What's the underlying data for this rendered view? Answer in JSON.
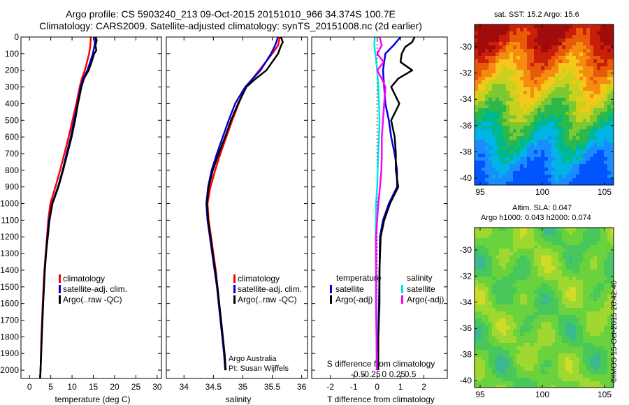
{
  "header": {
    "title_line1": "Argo profile: CS 5903240_213 09-Oct-2015 20151010_966 34.374S 100.7E",
    "title_line2": "Climatology: CARS2009. Satellite-adjusted climatology: synTS_20151008.nc (2d earlier)"
  },
  "maps": {
    "sst_title": "sat. SST: 15.2 Argo: 15.6",
    "sla_title_line1": "Altim. SLA: 0.047",
    "sla_title_line2": "Argo h1000: 0.043 h2000: 0.074",
    "lat_ticks": [
      "-30",
      "-32",
      "-34",
      "-36",
      "-38",
      "-40"
    ],
    "lon_ticks": [
      "95",
      "100",
      "105"
    ]
  },
  "footer": {
    "stamp": "©IMOS 15-Oct-2015 20:42:40",
    "credit_line1": "Argo Australia",
    "credit_line2": "PI: Susan Wijffels"
  },
  "colors": {
    "climatology": "#ff0000",
    "satellite": "#0000dd",
    "argo": "#000000",
    "sat_salinity": "#00e5e5",
    "argo_salinity": "#ff00ff"
  },
  "chart_data": [
    {
      "type": "line",
      "id": "temperature",
      "xlabel": "temperature (deg C)",
      "ylabel": "",
      "xlim": [
        -2,
        31
      ],
      "ylim": [
        2050,
        0
      ],
      "xticks": [
        0,
        5,
        10,
        15,
        20,
        25,
        30
      ],
      "yticks": [
        0,
        100,
        200,
        300,
        400,
        500,
        600,
        700,
        800,
        900,
        1000,
        1100,
        1200,
        1300,
        1400,
        1500,
        1600,
        1700,
        1800,
        1900,
        2000
      ],
      "legend": [
        "climatology",
        "satellite-adj. clim.",
        "Argo(..raw -QC)"
      ],
      "series": [
        {
          "name": "climatology",
          "y": [
            0,
            50,
            100,
            200,
            250,
            300,
            400,
            500,
            600,
            700,
            800,
            900,
            1000,
            1100,
            1200,
            1300,
            1400,
            1600,
            1800,
            2000,
            2050
          ],
          "x": [
            14.4,
            14.3,
            14.0,
            13.0,
            12.3,
            11.8,
            11.0,
            10.1,
            9.2,
            8.2,
            7.2,
            6.1,
            4.9,
            4.4,
            4.1,
            3.8,
            3.5,
            3.1,
            2.8,
            2.6,
            2.5
          ]
        },
        {
          "name": "satellite-adj. clim.",
          "y": [
            0,
            50,
            100,
            200,
            250,
            300,
            400,
            500,
            600,
            700,
            800,
            900,
            1000,
            1100,
            1200,
            1300,
            1400,
            1600,
            1800,
            2000,
            2050
          ],
          "x": [
            15.4,
            15.3,
            14.9,
            13.6,
            12.6,
            12.0,
            11.3,
            10.5,
            9.7,
            8.7,
            7.8,
            6.7,
            5.3,
            4.6,
            4.2,
            3.9,
            3.6,
            3.2,
            2.9,
            2.6,
            2.5
          ]
        },
        {
          "name": "Argo(..raw -QC)",
          "y": [
            0,
            20,
            50,
            80,
            100,
            150,
            200,
            250,
            300,
            400,
            500,
            600,
            700,
            800,
            900,
            1000,
            1100,
            1200,
            1300,
            1400,
            1600,
            1800,
            2000,
            2050
          ],
          "x": [
            15.6,
            15.8,
            15.5,
            15.7,
            15.2,
            14.6,
            13.9,
            12.8,
            12.2,
            11.4,
            10.7,
            9.9,
            8.9,
            7.9,
            6.8,
            5.4,
            4.7,
            4.3,
            3.9,
            3.6,
            3.2,
            2.9,
            2.6,
            2.5
          ]
        }
      ]
    },
    {
      "type": "line",
      "id": "salinity",
      "xlabel": "salinity",
      "ylabel": "",
      "xlim": [
        33.7,
        36.1
      ],
      "ylim": [
        2050,
        0
      ],
      "xticks": [
        34,
        34.5,
        35,
        35.5,
        36
      ],
      "legend": [
        "climatology",
        "satellite-adj. clim.",
        "Argo(..raw -QC)"
      ],
      "series": [
        {
          "name": "climatology",
          "y": [
            0,
            50,
            100,
            200,
            300,
            400,
            500,
            600,
            700,
            800,
            900,
            1000,
            1100,
            1200,
            1300,
            1400,
            1500,
            1600,
            1700,
            1800,
            1900,
            2000
          ],
          "x": [
            35.63,
            35.6,
            35.5,
            35.28,
            35.05,
            34.93,
            34.82,
            34.72,
            34.62,
            34.53,
            34.45,
            34.4,
            34.42,
            34.46,
            34.5,
            34.54,
            34.57,
            34.6,
            34.63,
            34.66,
            34.69,
            34.71
          ]
        },
        {
          "name": "satellite-adj. clim.",
          "y": [
            0,
            50,
            100,
            200,
            300,
            400,
            500,
            600,
            700,
            800,
            900,
            1000,
            1100,
            1200,
            1300,
            1400,
            1500,
            1600,
            1700,
            1800,
            1900,
            2000
          ],
          "x": [
            35.6,
            35.55,
            35.48,
            35.3,
            35.04,
            34.87,
            34.76,
            34.66,
            34.56,
            34.47,
            34.41,
            34.38,
            34.4,
            34.44,
            34.48,
            34.52,
            34.56,
            34.59,
            34.62,
            34.65,
            34.68,
            34.7
          ]
        },
        {
          "name": "Argo(..raw -QC)",
          "y": [
            0,
            30,
            60,
            100,
            150,
            200,
            250,
            300,
            400,
            500,
            600,
            700,
            800,
            900,
            1000,
            1100,
            1200,
            1300,
            1400,
            1500,
            1600,
            1700,
            1800,
            1900,
            2000
          ],
          "x": [
            35.65,
            35.68,
            35.64,
            35.6,
            35.5,
            35.4,
            35.22,
            35.06,
            34.92,
            34.8,
            34.7,
            34.59,
            34.49,
            34.42,
            34.39,
            34.41,
            34.45,
            34.49,
            34.53,
            34.57,
            34.6,
            34.63,
            34.66,
            34.69,
            34.71
          ]
        }
      ]
    },
    {
      "type": "line",
      "id": "difference",
      "xlabel": "T difference from climatology",
      "xlabel_top": "S difference from climatology",
      "ylabel": "",
      "xlim": [
        -2.8,
        3.0
      ],
      "ylim": [
        2050,
        0
      ],
      "xticks": [
        -2,
        -1,
        0,
        1,
        2
      ],
      "xticks_top": [
        -0.5,
        -0.25,
        0,
        0.25,
        0.5
      ],
      "legend_titles": [
        "temperature",
        "salinity"
      ],
      "legend": [
        "satellite",
        "Argo(-adj)",
        "satellite",
        "Argo(-adj)"
      ],
      "series": [
        {
          "name": "satellite",
          "group": "temperature",
          "y": [
            0,
            50,
            100,
            200,
            300,
            400,
            500,
            600,
            700,
            800,
            900,
            1000,
            1100,
            1200,
            1400,
            1600,
            1800,
            2000
          ],
          "x": [
            1.0,
            0.7,
            0.35,
            0.25,
            0.3,
            0.35,
            0.5,
            0.6,
            0.75,
            0.85,
            0.85,
            0.5,
            0.25,
            0.12,
            0.1,
            0.08,
            0.05,
            0.0
          ]
        },
        {
          "name": "Argo(-adj)",
          "group": "temperature",
          "y": [
            0,
            30,
            60,
            100,
            150,
            200,
            250,
            300,
            400,
            500,
            600,
            700,
            800,
            900,
            1000,
            1100,
            1200,
            1400,
            1600,
            1800,
            2000
          ],
          "x": [
            1.6,
            1.5,
            1.2,
            1.05,
            1.0,
            1.5,
            0.9,
            0.6,
            0.95,
            0.6,
            0.75,
            0.8,
            0.8,
            0.9,
            0.55,
            0.3,
            0.15,
            0.1,
            0.1,
            0.05,
            0.05
          ]
        },
        {
          "name": "satellite",
          "group": "salinity",
          "y": [
            0,
            50,
            100,
            200,
            300,
            400,
            500,
            600,
            700,
            800,
            900,
            1000,
            1200,
            1400,
            1600,
            1800,
            2000
          ],
          "x": [
            -0.1,
            -0.12,
            -0.08,
            0.0,
            0.05,
            0.08,
            0.1,
            0.08,
            0.05,
            0.02,
            0.0,
            -0.05,
            -0.06,
            -0.04,
            -0.03,
            -0.02,
            -0.01
          ]
        },
        {
          "name": "Argo(-adj)",
          "group": "salinity",
          "y": [
            0,
            50,
            100,
            150,
            200,
            250,
            300,
            400,
            500,
            600,
            700,
            800,
            900,
            1000,
            1200,
            1400,
            1600,
            1800,
            2000
          ],
          "x": [
            0.1,
            0.2,
            0.0,
            0.28,
            0.0,
            0.2,
            0.35,
            0.3,
            0.25,
            0.2,
            0.2,
            0.18,
            0.12,
            0.05,
            -0.05,
            -0.05,
            -0.05,
            -0.03,
            -0.02
          ]
        }
      ]
    }
  ]
}
